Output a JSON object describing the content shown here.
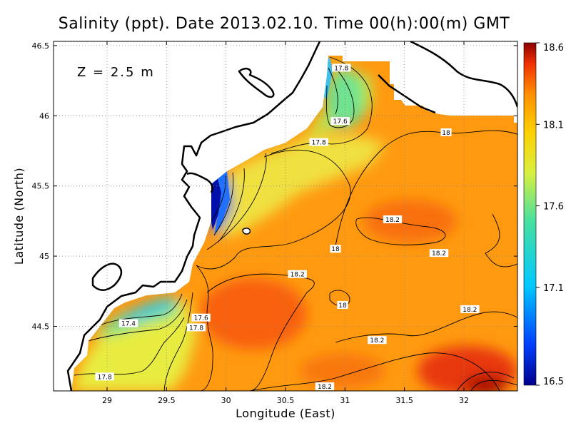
{
  "chart_data": {
    "type": "heatmap",
    "title": "Salinity (ppt). Date 2013.02.10. Time 00(h):00(m) GMT",
    "xlabel": "Longitude (East)",
    "ylabel": "Latitude (North)",
    "annotation": "Z  =  2.5  m",
    "xlim": [
      28.55,
      32.45
    ],
    "ylim": [
      44.04,
      46.53
    ],
    "x_ticks": [
      "29",
      "29.5",
      "30",
      "30.5",
      "31",
      "31.5",
      "32"
    ],
    "x_tick_values": [
      29,
      29.5,
      30,
      30.5,
      31,
      31.5,
      32
    ],
    "y_ticks": [
      "44.5",
      "45",
      "45.5",
      "46",
      "46.5"
    ],
    "y_tick_values": [
      44.5,
      45,
      45.5,
      46,
      46.5
    ],
    "grid": true,
    "colorbar": {
      "min": 16.5,
      "max": 18.6,
      "tick_labels": [
        "16.5",
        "17.1",
        "17.6",
        "18.1",
        "18.6"
      ],
      "tick_values": [
        16.5,
        17.1,
        17.6,
        18.1,
        18.6
      ],
      "colors": [
        "#00008b",
        "#0040ff",
        "#00c8ff",
        "#48e0a0",
        "#d8f040",
        "#ffd000",
        "#ff9000",
        "#f03000",
        "#8b0000"
      ]
    },
    "regions": [
      {
        "lon": 29.2,
        "lat": 44.6,
        "value": 17.4
      },
      {
        "lon": 29.9,
        "lat": 45.3,
        "value": 16.9
      },
      {
        "lon": 30.0,
        "lat": 45.8,
        "value": 17.8
      },
      {
        "lon": 30.9,
        "lat": 46.0,
        "value": 17.6
      },
      {
        "lon": 30.3,
        "lat": 44.6,
        "value": 18.3
      },
      {
        "lon": 31.6,
        "lat": 45.1,
        "value": 18.25
      },
      {
        "lon": 32.2,
        "lat": 44.2,
        "value": 18.45
      },
      {
        "lon": 31.8,
        "lat": 45.7,
        "value": 18.1
      }
    ],
    "contour_labels": [
      {
        "text": "17.8",
        "lon": 30.97,
        "lat": 46.34
      },
      {
        "text": "17.6",
        "lon": 30.96,
        "lat": 45.96
      },
      {
        "text": "17.8",
        "lon": 30.78,
        "lat": 45.81
      },
      {
        "text": "18",
        "lon": 31.85,
        "lat": 45.88
      },
      {
        "text": "18.2",
        "lon": 31.4,
        "lat": 45.26
      },
      {
        "text": "18.2",
        "lon": 31.79,
        "lat": 45.02
      },
      {
        "text": "18",
        "lon": 30.92,
        "lat": 45.05
      },
      {
        "text": "18.2",
        "lon": 30.6,
        "lat": 44.87
      },
      {
        "text": "18",
        "lon": 30.98,
        "lat": 44.65
      },
      {
        "text": "18.2",
        "lon": 32.05,
        "lat": 44.62
      },
      {
        "text": "17.4",
        "lon": 29.18,
        "lat": 44.52
      },
      {
        "text": "17.6",
        "lon": 29.79,
        "lat": 44.56
      },
      {
        "text": "17.8",
        "lon": 29.75,
        "lat": 44.49
      },
      {
        "text": "18.2",
        "lon": 31.27,
        "lat": 44.4
      },
      {
        "text": "17.8",
        "lon": 28.98,
        "lat": 44.14
      },
      {
        "text": "18.2",
        "lon": 30.83,
        "lat": 44.07
      }
    ]
  }
}
